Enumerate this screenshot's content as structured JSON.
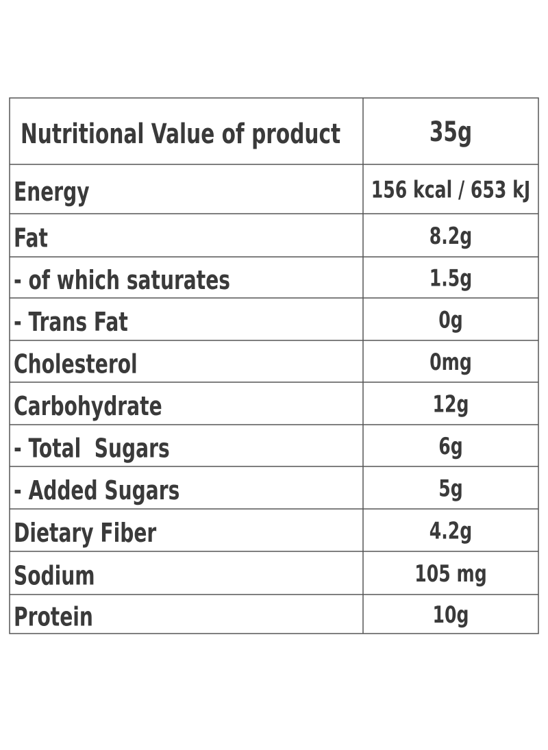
{
  "table": {
    "header": [
      "Nutritional Value of product",
      "35g"
    ],
    "rows": [
      [
        "Energy",
        "156 kcal / 653 kJ"
      ],
      [
        "Fat",
        "8.2g"
      ],
      [
        "- of which saturates",
        "1.5g"
      ],
      [
        "- Trans Fat",
        "0g"
      ],
      [
        "Cholesterol",
        "0mg"
      ],
      [
        "Carbohydrate",
        "12g"
      ],
      [
        "- Total  Sugars",
        "6g"
      ],
      [
        "- Added Sugars",
        "5g"
      ],
      [
        "Dietary Fiber",
        "4.2g"
      ],
      [
        "Sodium",
        "105 mg"
      ],
      [
        "Protein",
        "10g"
      ]
    ]
  }
}
